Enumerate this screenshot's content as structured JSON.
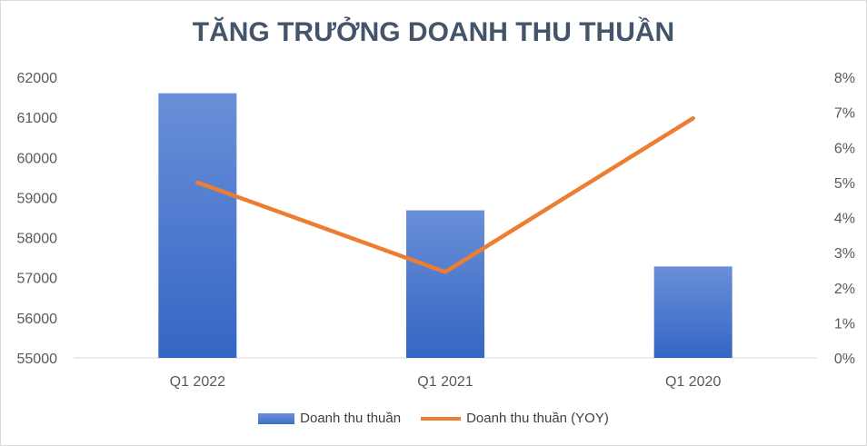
{
  "chart_data": {
    "type": "bar",
    "title": "TĂNG TRƯỞNG DOANH THU THUẦN",
    "categories": [
      "Q1 2022",
      "Q1 2021",
      "Q1 2020"
    ],
    "series": [
      {
        "name": "Doanh thu thuần",
        "type": "bar",
        "axis": "left",
        "values": [
          61600,
          58680,
          57280
        ],
        "color": "#4472c4"
      },
      {
        "name": "Doanh thu thuần (YOY)",
        "type": "line",
        "axis": "right",
        "values": [
          0.05,
          0.0245,
          0.0683
        ],
        "color": "#ed7d31"
      }
    ],
    "y_left": {
      "ylim": [
        55000,
        62000
      ],
      "ticks": [
        "55000",
        "56000",
        "57000",
        "58000",
        "59000",
        "60000",
        "61000",
        "62000"
      ]
    },
    "y_right": {
      "ylim": [
        0,
        0.08
      ],
      "ticks": [
        "0%",
        "1%",
        "2%",
        "3%",
        "4%",
        "5%",
        "6%",
        "7%",
        "8%"
      ]
    },
    "grid": false,
    "legend": "bottom"
  }
}
